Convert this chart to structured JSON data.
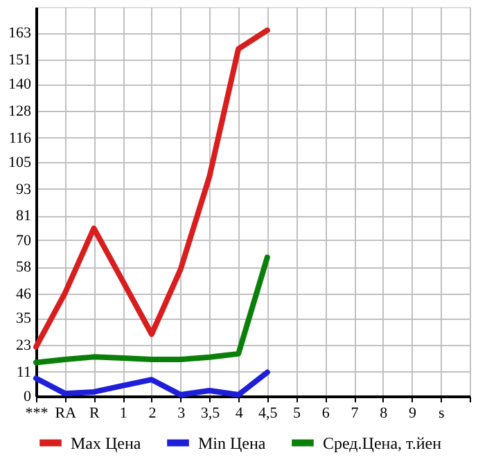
{
  "chart_data": {
    "type": "line",
    "categories": [
      "***",
      "RA",
      "R",
      "1",
      "2",
      "3",
      "3,5",
      "4",
      "4,5",
      "5",
      "6",
      "7",
      "8",
      "9",
      "s",
      null
    ],
    "series": [
      {
        "name": "Max Цена",
        "color": "#d81e1e",
        "values": [
          22.1,
          46.2,
          75.3,
          51.6,
          27.8,
          56.9,
          98.6,
          155.8,
          164.2,
          null,
          null,
          null,
          null,
          null,
          null,
          null
        ]
      },
      {
        "name": "Min Цена",
        "color": "#1f1fd9",
        "values": [
          8.0,
          1.2,
          1.9,
          4.7,
          7.4,
          0.6,
          2.5,
          0.6,
          10.7,
          null,
          null,
          null,
          null,
          null,
          null,
          null
        ]
      },
      {
        "name": "Сред.Цена, т.йен",
        "color": "#0a800a",
        "values": [
          15.1,
          16.5,
          17.6,
          17.1,
          16.5,
          16.5,
          17.5,
          19.0,
          62.3,
          null,
          null,
          null,
          null,
          null,
          null,
          null
        ]
      }
    ],
    "ylim": [
      0,
      174.64
    ],
    "yticks": [
      0,
      11,
      23,
      35,
      46,
      58,
      70,
      81,
      93,
      105,
      116,
      128,
      140,
      151,
      163
    ],
    "grid": true,
    "legend": "bottom",
    "marker": "none",
    "line_style": "solid"
  }
}
